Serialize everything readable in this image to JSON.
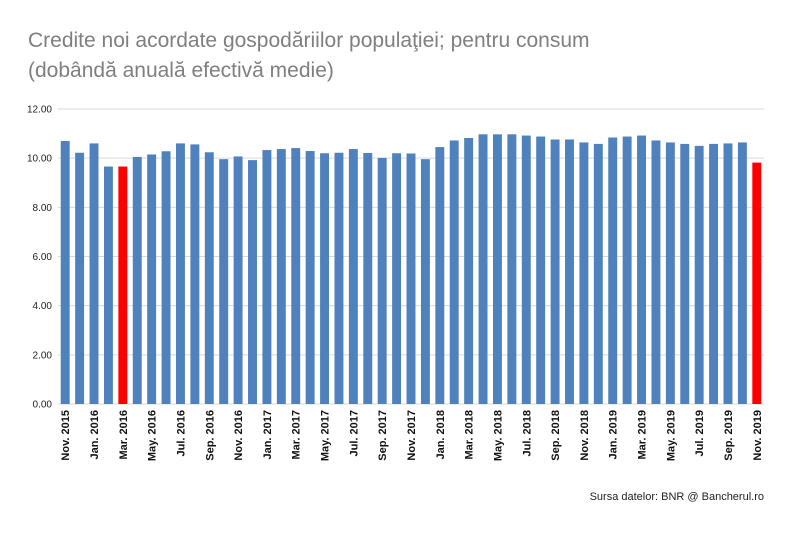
{
  "title_lines": [
    "Credite noi acordate gospodăriilor populaţiei; pentru consum",
    "(dobândă anuală efectivă medie)"
  ],
  "source": "Sursa datelor: BNR @ Bancherul.ro",
  "colors": {
    "bar": "#4f81bd",
    "highlight": "#ff0000",
    "grid": "#d9d9d9",
    "title": "#7f7f7f"
  },
  "chart_data": {
    "type": "bar",
    "title": "Credite noi acordate gospodăriilor populaţiei; pentru consum (dobândă anuală efectivă medie)",
    "xlabel": "",
    "ylabel": "",
    "ylim": [
      0,
      12
    ],
    "yticks": [
      "0.00",
      "2.00",
      "4.00",
      "6.00",
      "8.00",
      "10.00",
      "12.00"
    ],
    "grid": true,
    "legend": "none",
    "categories": [
      "Nov. 2015",
      "Dec. 2015",
      "Jan. 2016",
      "Feb. 2016",
      "Mar. 2016",
      "Apr. 2016",
      "May. 2016",
      "Jun. 2016",
      "Jul. 2016",
      "Aug. 2016",
      "Sep. 2016",
      "Oct. 2016",
      "Nov. 2016",
      "Dec. 2016",
      "Jan. 2017",
      "Feb. 2017",
      "Mar. 2017",
      "Apr. 2017",
      "May. 2017",
      "Jun. 2017",
      "Jul. 2017",
      "Aug. 2017",
      "Sep. 2017",
      "Oct. 2017",
      "Nov. 2017",
      "Dec. 2017",
      "Jan. 2018",
      "Feb. 2018",
      "Mar. 2018",
      "Apr. 2018",
      "May. 2018",
      "Jun. 2018",
      "Jul. 2018",
      "Aug. 2018",
      "Sep. 2018",
      "Oct. 2018",
      "Nov. 2018",
      "Dec. 2018",
      "Jan. 2019",
      "Feb. 2019",
      "Mar. 2019",
      "Apr. 2019",
      "May. 2019",
      "Jun. 2019",
      "Jul. 2019",
      "Aug. 2019",
      "Sep. 2019",
      "Oct. 2019",
      "Nov. 2019"
    ],
    "tick_labels": [
      "Nov. 2015",
      "",
      "Jan. 2016",
      "",
      "Mar. 2016",
      "",
      "May. 2016",
      "",
      "Jul. 2016",
      "",
      "Sep. 2016",
      "",
      "Nov. 2016",
      "",
      "Jan. 2017",
      "",
      "Mar. 2017",
      "",
      "May. 2017",
      "",
      "Jul. 2017",
      "",
      "Sep. 2017",
      "",
      "Nov. 2017",
      "",
      "Jan. 2018",
      "",
      "Mar. 2018",
      "",
      "May. 2018",
      "",
      "Jul. 2018",
      "",
      "Sep. 2018",
      "",
      "Nov. 2018",
      "",
      "Jan. 2019",
      "",
      "Mar. 2019",
      "",
      "May. 2019",
      "",
      "Jul. 2019",
      "",
      "Sep. 2019",
      "",
      "Nov. 2019"
    ],
    "values": [
      10.7,
      10.22,
      10.6,
      9.66,
      9.66,
      10.05,
      10.15,
      10.28,
      10.6,
      10.56,
      10.24,
      9.96,
      10.07,
      9.92,
      10.33,
      10.37,
      10.41,
      10.29,
      10.2,
      10.22,
      10.37,
      10.21,
      10.01,
      10.2,
      10.19,
      9.96,
      10.45,
      10.72,
      10.82,
      10.97,
      10.97,
      10.97,
      10.92,
      10.88,
      10.76,
      10.76,
      10.64,
      10.58,
      10.84,
      10.88,
      10.92,
      10.72,
      10.64,
      10.58,
      10.5,
      10.58,
      10.6,
      10.64,
      9.82
    ],
    "highlighted": [
      "Mar. 2016",
      "Nov. 2019"
    ]
  }
}
